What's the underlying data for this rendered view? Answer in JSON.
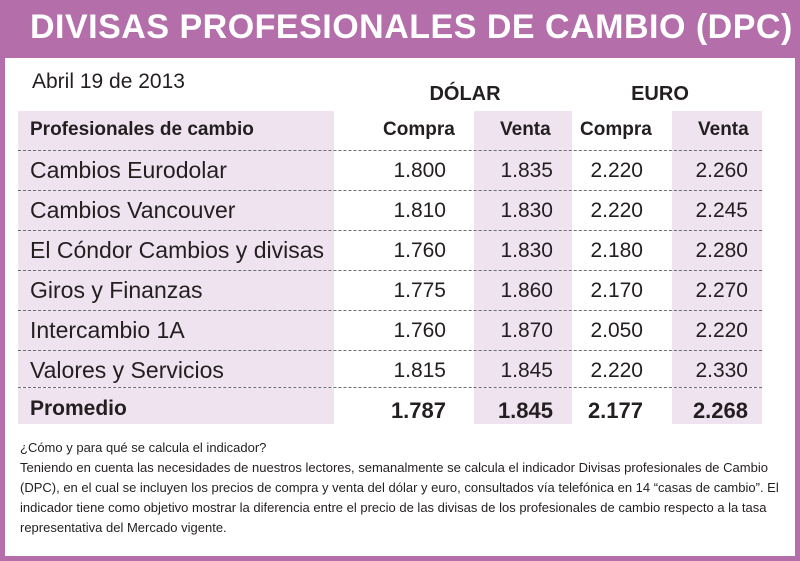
{
  "header": {
    "title": "DIVISAS PROFESIONALES DE CAMBIO (DPC)",
    "date": "Abril 19 de 2013"
  },
  "table": {
    "group_dolar": "DÓLAR",
    "group_euro": "EURO",
    "columns": [
      "Profesionales de cambio",
      "Compra",
      "Venta",
      "Compra",
      "Venta"
    ],
    "rows": [
      {
        "name": "Cambios Eurodolar",
        "dolar_compra": "1.800",
        "dolar_venta": "1.835",
        "euro_compra": "2.220",
        "euro_venta": "2.260"
      },
      {
        "name": "Cambios Vancouver",
        "dolar_compra": "1.810",
        "dolar_venta": "1.830",
        "euro_compra": "2.220",
        "euro_venta": "2.245"
      },
      {
        "name": "El Cóndor Cambios y divisas",
        "dolar_compra": "1.760",
        "dolar_venta": "1.830",
        "euro_compra": "2.180",
        "euro_venta": "2.280"
      },
      {
        "name": "Giros y Finanzas",
        "dolar_compra": "1.775",
        "dolar_venta": "1.860",
        "euro_compra": "2.170",
        "euro_venta": "2.270"
      },
      {
        "name": "Intercambio 1A",
        "dolar_compra": "1.760",
        "dolar_venta": "1.870",
        "euro_compra": "2.050",
        "euro_venta": "2.220"
      },
      {
        "name": "Valores y Servicios",
        "dolar_compra": "1.815",
        "dolar_venta": "1.845",
        "euro_compra": "2.220",
        "euro_venta": "2.330"
      }
    ],
    "total": {
      "name": "Promedio",
      "dolar_compra": "1.787",
      "dolar_venta": "1.845",
      "euro_compra": "2.177",
      "euro_venta": "2.268"
    }
  },
  "note": {
    "question": "¿Cómo y para qué se calcula el indicador?",
    "body": "Teniendo en cuenta las necesidades de nuestros lectores, semanalmente se calcula el indicador Divisas profesionales de Cambio (DPC), en el cual se incluyen los precios de compra y venta del dólar y euro, consultados vía telefónica en 14 “casas de cambio”. El indicador tiene como objetivo mostrar la diferencia entre el precio de las divisas de los profesionales de cambio respecto a la tasa representativa del Mercado vigente."
  },
  "colors": {
    "accent": "#b46fab",
    "shade": "#efe3ef",
    "text": "#231f20"
  }
}
